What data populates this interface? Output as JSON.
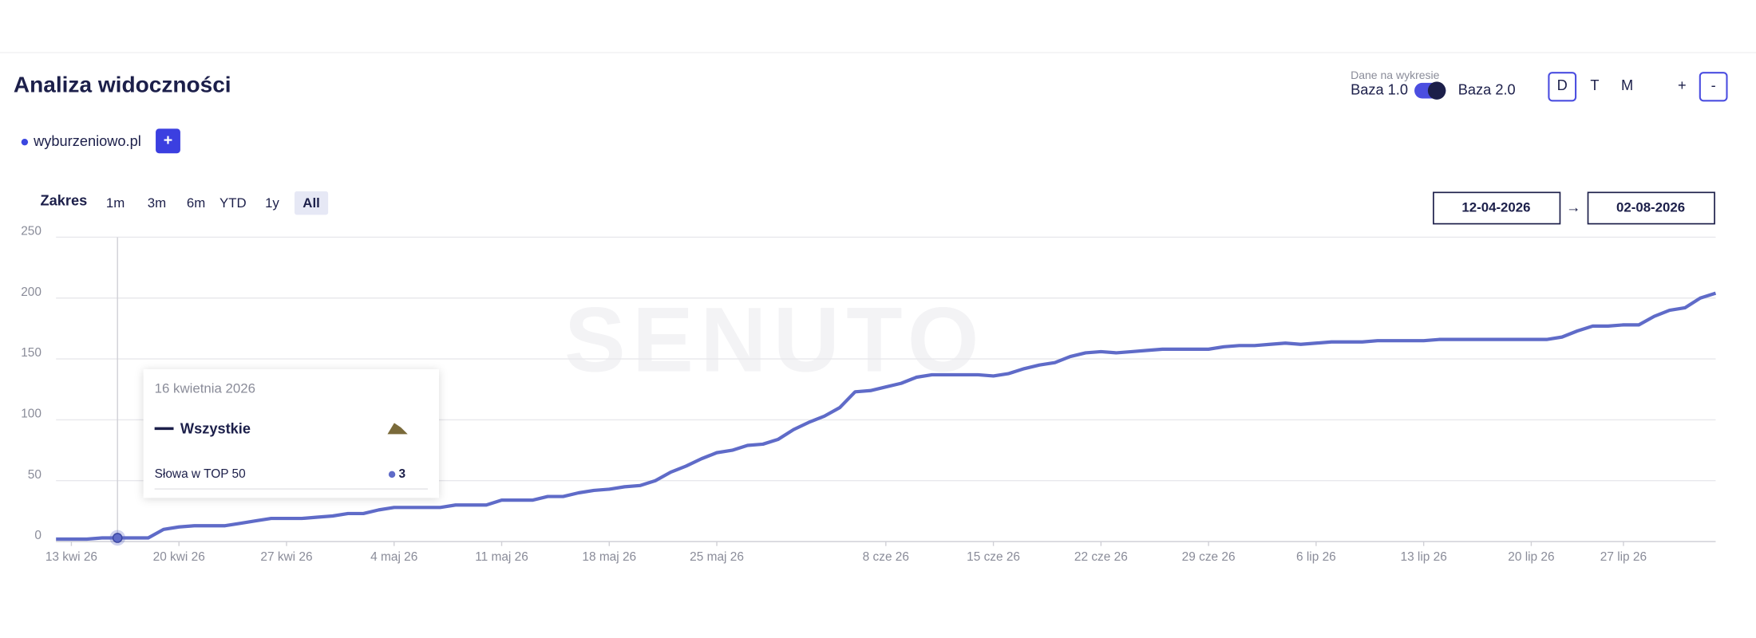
{
  "header": {
    "title": "Analiza widoczności"
  },
  "data_toggle": {
    "caption": "Dane na wykresie",
    "left": "Baza 1.0",
    "right": "Baza 2.0"
  },
  "view_buttons": [
    "D",
    "T",
    "M",
    "+",
    "-"
  ],
  "domain": {
    "name": "wyburzeniowo.pl",
    "add": "+"
  },
  "range": {
    "label": "Zakres",
    "buttons": [
      "1m",
      "3m",
      "6m",
      "YTD",
      "1y",
      "All"
    ],
    "from": "12-04-2026",
    "arrow": "→",
    "to": "02-08-2026"
  },
  "watermark": "SENUTO",
  "tooltip": {
    "date": "16 kwietnia 2026",
    "row": "Słowa w TOP 50"
  },
  "chart_data": {
    "type": "line",
    "categories": [
      null,
      "13 kwi 26",
      null,
      null,
      null,
      null,
      null,
      null,
      "20 kwi 26",
      null,
      null,
      null,
      null,
      null,
      null,
      "27 kwi 26",
      null,
      null,
      null,
      null,
      null,
      null,
      "4 maj 26",
      null,
      null,
      null,
      null,
      null,
      null,
      "11 maj 26",
      null,
      null,
      null,
      null,
      null,
      null,
      "18 maj 26",
      null,
      null,
      null,
      null,
      null,
      null,
      "25 maj 26",
      null,
      null,
      null,
      null,
      null,
      null,
      null,
      null,
      null,
      null,
      "8 cze 26",
      null,
      null,
      null,
      null,
      null,
      null,
      "15 cze 26",
      null,
      null,
      null,
      null,
      null,
      null,
      "22 cze 26",
      null,
      null,
      null,
      null,
      null,
      null,
      "29 cze 26",
      null,
      null,
      null,
      null,
      null,
      null,
      "6 lip 26",
      null,
      null,
      null,
      null,
      null,
      null,
      "13 lip 26",
      null,
      null,
      null,
      null,
      null,
      null,
      "20 lip 26",
      null,
      null,
      null,
      null,
      null,
      "27 lip 26",
      null,
      null,
      null,
      null,
      null,
      null
    ],
    "series": [
      {
        "name": "Wszystkie",
        "color": "#5f6bc8",
        "values": [
          2,
          2,
          2,
          3,
          3,
          3,
          3,
          10,
          12,
          13,
          13,
          13,
          15,
          17,
          19,
          19,
          19,
          20,
          21,
          23,
          23,
          26,
          28,
          28,
          28,
          28,
          30,
          30,
          30,
          34,
          34,
          34,
          37,
          37,
          40,
          42,
          43,
          45,
          46,
          50,
          57,
          62,
          68,
          73,
          75,
          79,
          80,
          84,
          92,
          98,
          103,
          110,
          123,
          124,
          127,
          130,
          135,
          137,
          137,
          137,
          137,
          136,
          138,
          142,
          145,
          147,
          152,
          155,
          156,
          155,
          156,
          157,
          158,
          158,
          158,
          158,
          160,
          161,
          161,
          162,
          163,
          162,
          163,
          164,
          164,
          164,
          165,
          165,
          165,
          165,
          166,
          166,
          166,
          166,
          166,
          166,
          166,
          166,
          168,
          173,
          177,
          177,
          178,
          178,
          185,
          190,
          192,
          200,
          204
        ]
      }
    ],
    "ylim": [
      0,
      250
    ],
    "yticks": [
      0,
      50,
      100,
      150,
      200,
      250
    ],
    "grid": true
  }
}
